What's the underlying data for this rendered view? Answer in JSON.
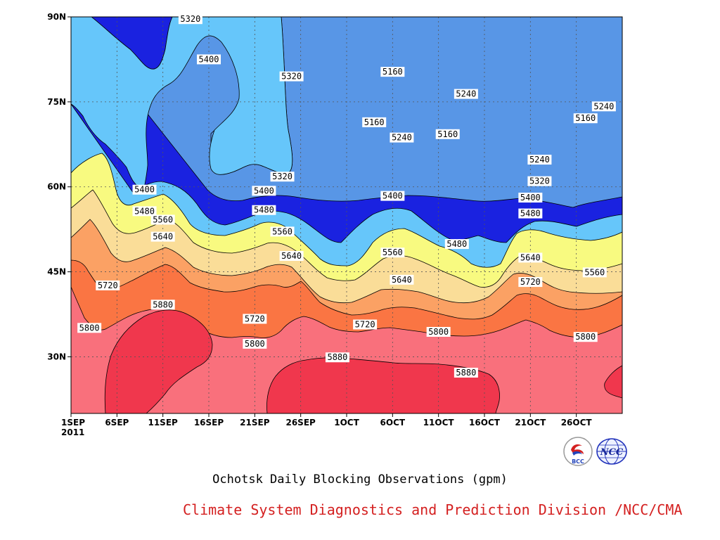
{
  "chart_data": {
    "type": "heatmap",
    "title": "Ochotsk Daily Blocking Observations (gpm)",
    "xlabel": "",
    "ylabel": "",
    "x_ticks": [
      "1SEP",
      "6SEP",
      "11SEP",
      "16SEP",
      "21SEP",
      "26SEP",
      "1OCT",
      "6OCT",
      "11OCT",
      "16OCT",
      "21OCT",
      "26OCT"
    ],
    "x_year_label": "2011",
    "x_range": [
      "2011-09-01",
      "2011-10-31"
    ],
    "y_ticks": [
      "30N",
      "45N",
      "60N",
      "75N",
      "90N"
    ],
    "y_range": [
      20,
      90
    ],
    "grid": true,
    "contour_levels": [
      5160,
      5240,
      5320,
      5400,
      5480,
      5560,
      5640,
      5720,
      5800,
      5880
    ],
    "level_colors": {
      "below_5160": "#0b1470",
      "5160_5240": "#1a22e0",
      "5240_5320": "#4a55ee",
      "5320_5400": "#5896e6",
      "5400_5480": "#66c6fa",
      "5480_5560": "#f8fa80",
      "5560_5640": "#fadd98",
      "5640_5720": "#fba164",
      "5720_5800": "#fa7543",
      "5800_5880": "#f9707c",
      "above_5880": "#f0374d"
    },
    "contour_labels": [
      {
        "date": "2011-09-14",
        "lat": 89.6,
        "value": "5320"
      },
      {
        "date": "2011-09-16",
        "lat": 82.5,
        "value": "5400"
      },
      {
        "date": "2011-09-25",
        "lat": 79.5,
        "value": "5320"
      },
      {
        "date": "2011-10-06",
        "lat": 80.3,
        "value": "5160"
      },
      {
        "date": "2011-10-14",
        "lat": 76.4,
        "value": "5240"
      },
      {
        "date": "2011-10-29",
        "lat": 74.2,
        "value": "5240"
      },
      {
        "date": "2011-10-04",
        "lat": 71.4,
        "value": "5160"
      },
      {
        "date": "2011-10-27",
        "lat": 72.1,
        "value": "5160"
      },
      {
        "date": "2011-10-12",
        "lat": 69.3,
        "value": "5160"
      },
      {
        "date": "2011-10-07",
        "lat": 68.7,
        "value": "5240"
      },
      {
        "date": "2011-10-22",
        "lat": 64.8,
        "value": "5240"
      },
      {
        "date": "2011-09-24",
        "lat": 61.8,
        "value": "5320"
      },
      {
        "date": "2011-10-22",
        "lat": 61.0,
        "value": "5320"
      },
      {
        "date": "2011-09-09",
        "lat": 59.5,
        "value": "5400"
      },
      {
        "date": "2011-09-22",
        "lat": 59.3,
        "value": "5400"
      },
      {
        "date": "2011-10-06",
        "lat": 58.4,
        "value": "5400"
      },
      {
        "date": "2011-10-21",
        "lat": 58.1,
        "value": "5400"
      },
      {
        "date": "2011-09-09",
        "lat": 55.7,
        "value": "5480"
      },
      {
        "date": "2011-09-22",
        "lat": 55.9,
        "value": "5480"
      },
      {
        "date": "2011-10-21",
        "lat": 55.3,
        "value": "5480"
      },
      {
        "date": "2011-09-11",
        "lat": 54.2,
        "value": "5560"
      },
      {
        "date": "2011-09-24",
        "lat": 52.1,
        "value": "5560"
      },
      {
        "date": "2011-10-06",
        "lat": 48.4,
        "value": "5560"
      },
      {
        "date": "2011-10-13",
        "lat": 49.9,
        "value": "5480"
      },
      {
        "date": "2011-10-21",
        "lat": 47.5,
        "value": "5640"
      },
      {
        "date": "2011-10-28",
        "lat": 44.9,
        "value": "5560"
      },
      {
        "date": "2011-09-11",
        "lat": 51.2,
        "value": "5640"
      },
      {
        "date": "2011-09-25",
        "lat": 47.8,
        "value": "5640"
      },
      {
        "date": "2011-10-07",
        "lat": 43.6,
        "value": "5640"
      },
      {
        "date": "2011-09-05",
        "lat": 42.6,
        "value": "5720"
      },
      {
        "date": "2011-10-21",
        "lat": 43.2,
        "value": "5720"
      },
      {
        "date": "2011-09-11",
        "lat": 39.2,
        "value": "5880"
      },
      {
        "date": "2011-09-21",
        "lat": 36.7,
        "value": "5720"
      },
      {
        "date": "2011-10-03",
        "lat": 35.7,
        "value": "5720"
      },
      {
        "date": "2011-09-03",
        "lat": 35.1,
        "value": "5800"
      },
      {
        "date": "2011-10-11",
        "lat": 34.4,
        "value": "5800"
      },
      {
        "date": "2011-10-27",
        "lat": 33.5,
        "value": "5800"
      },
      {
        "date": "2011-09-21",
        "lat": 32.3,
        "value": "5800"
      },
      {
        "date": "2011-09-30",
        "lat": 29.9,
        "value": "5880"
      },
      {
        "date": "2011-10-14",
        "lat": 27.2,
        "value": "5880"
      }
    ]
  },
  "footer": {
    "credit": "Climate System Diagnostics and Prediction Division /NCC/CMA",
    "logo_left_text": "BCC",
    "logo_right_text": "NCC",
    "logo_left_icon": "bcc-logo-icon",
    "logo_right_icon": "ncc-globe-logo-icon"
  }
}
